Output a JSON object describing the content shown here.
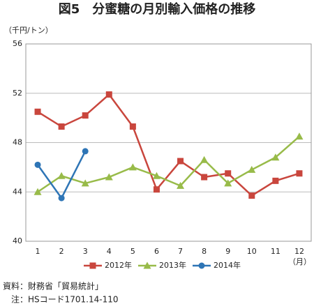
{
  "chart_data": {
    "type": "line",
    "title": "図5　分蜜糖の月別輸入価格の推移",
    "y_label": "（千円/トン）",
    "x_label": "（月）",
    "categories": [
      "1",
      "2",
      "3",
      "4",
      "5",
      "6",
      "7",
      "8",
      "9",
      "10",
      "11",
      "12"
    ],
    "series": [
      {
        "name": "2012年",
        "color": "#c9463d",
        "marker": "square",
        "values": [
          50.5,
          49.3,
          50.2,
          51.9,
          49.3,
          44.2,
          46.5,
          45.2,
          45.5,
          43.7,
          44.9,
          45.5
        ]
      },
      {
        "name": "2013年",
        "color": "#98bb49",
        "marker": "triangle",
        "values": [
          44.0,
          45.3,
          44.7,
          45.2,
          46.0,
          45.3,
          44.5,
          46.6,
          44.7,
          45.8,
          46.8,
          48.5
        ]
      },
      {
        "name": "2014年",
        "color": "#2e75b6",
        "marker": "circle",
        "values": [
          46.2,
          43.5,
          47.3,
          null,
          null,
          null,
          null,
          null,
          null,
          null,
          null,
          null
        ]
      }
    ],
    "ylim": [
      40,
      56
    ],
    "yticks": [
      40,
      44,
      48,
      52,
      56
    ],
    "grid": true,
    "legend": "bottom",
    "notes": [
      "資料：財務省「貿易統計」",
      "注：HSコード1701.14-110"
    ]
  }
}
